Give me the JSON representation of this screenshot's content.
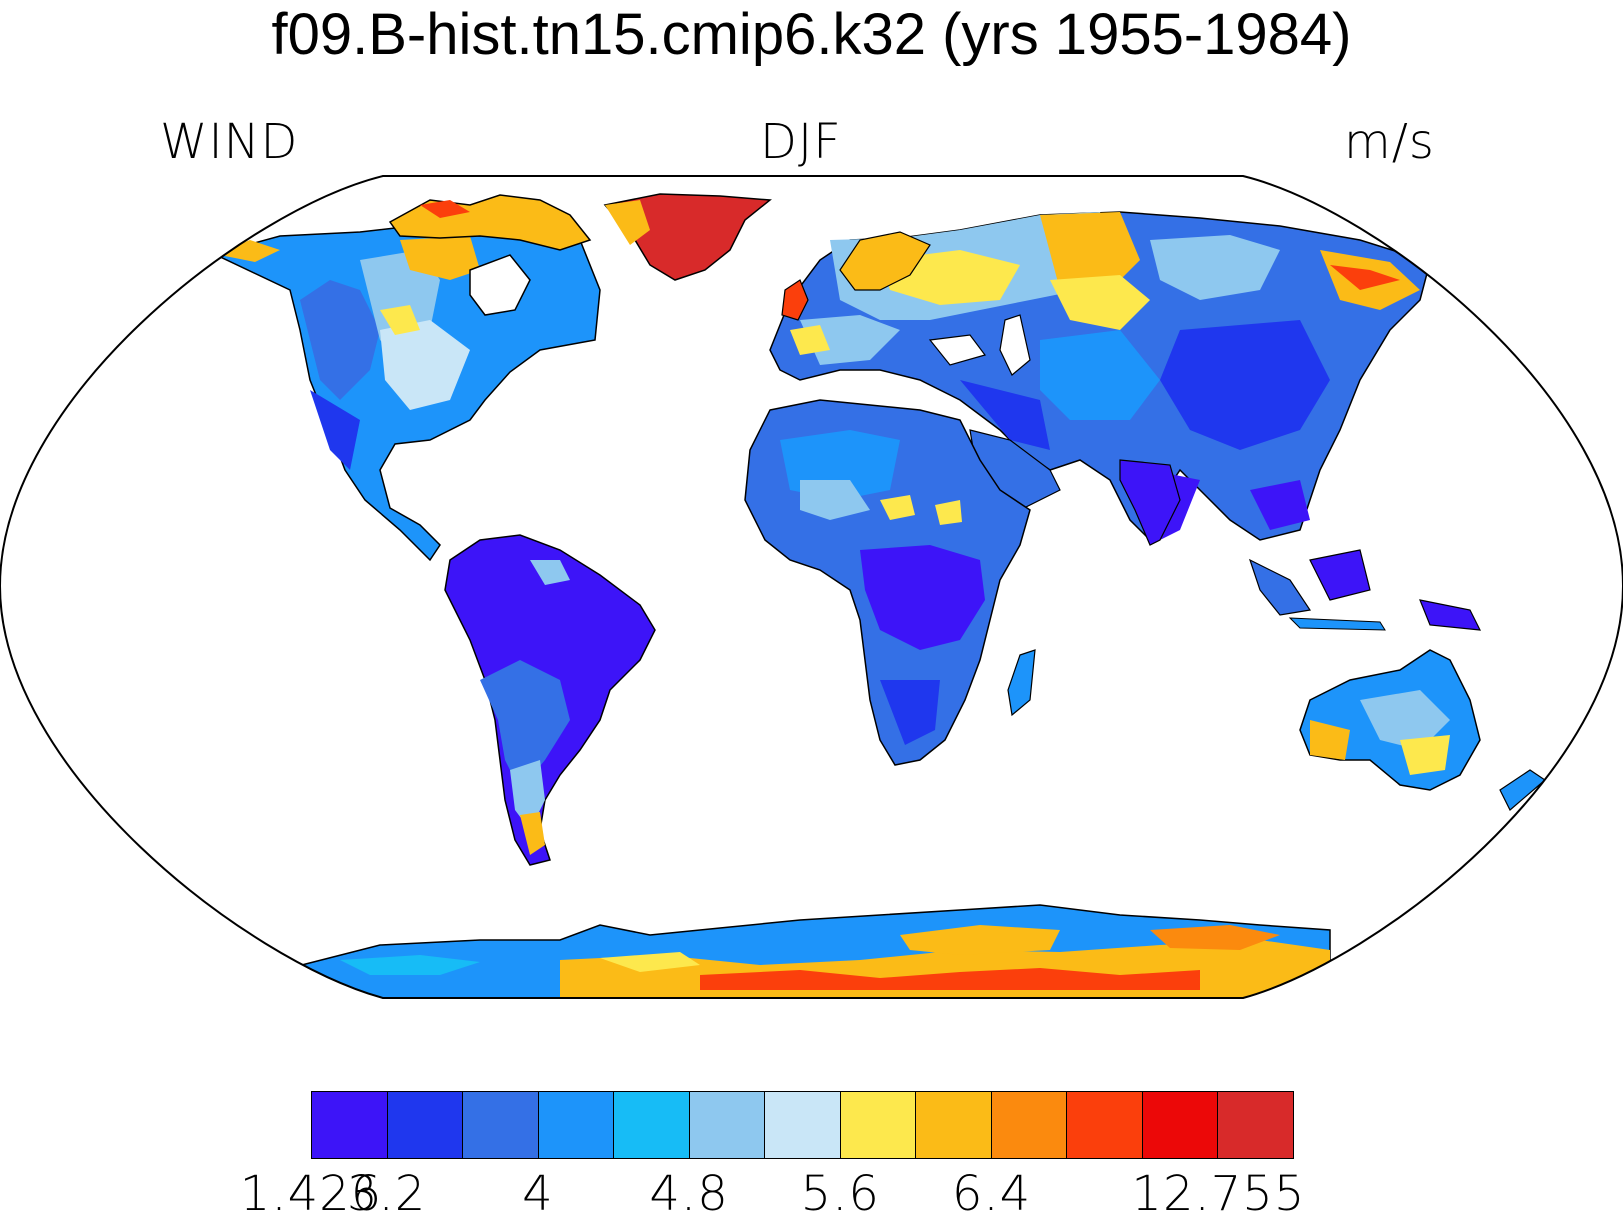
{
  "title": "f09.B-hist.tn15.cmip6.k32 (yrs 1955-1984)",
  "left_string": "WIND",
  "center_string": "DJF",
  "right_string": "m/s",
  "colorbar": {
    "colors": [
      "#3d14f8",
      "#1f37ee",
      "#3470e6",
      "#1d94fa",
      "#17bcf6",
      "#8ec8ef",
      "#c9e6f7",
      "#fde84d",
      "#fbbb17",
      "#fb8a0e",
      "#fb3f0c",
      "#ec0808",
      "#d82a2a"
    ],
    "labels": [
      {
        "text": "1.426",
        "boundary": 0
      },
      {
        "text": "3.2",
        "boundary": 1
      },
      {
        "text": "4",
        "boundary": 3
      },
      {
        "text": "4.8",
        "boundary": 5
      },
      {
        "text": "5.6",
        "boundary": 7
      },
      {
        "text": "6.4",
        "boundary": 9
      },
      {
        "text": "12.755",
        "boundary": 12
      }
    ]
  }
}
